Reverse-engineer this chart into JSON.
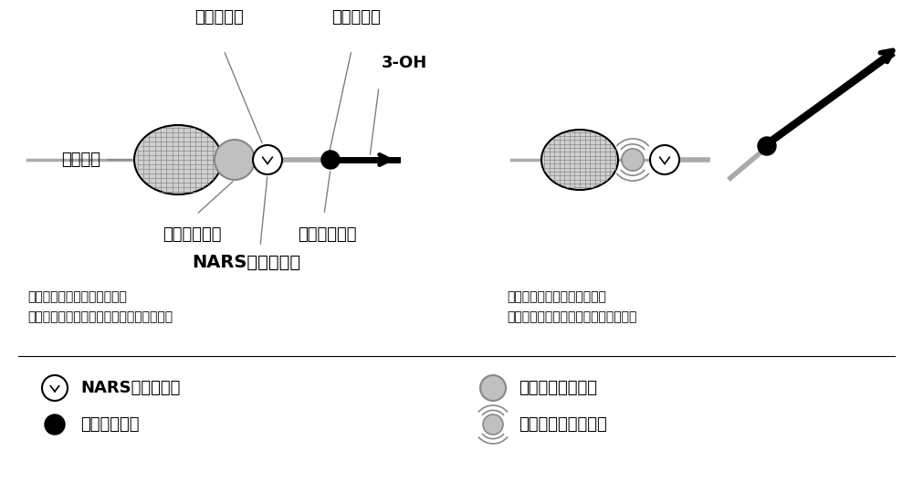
{
  "bg_color": "#ffffff",
  "font_family": "SimHei",
  "fig_width": 10.0,
  "fig_height": 5.4,
  "dpi": 100,
  "labels": {
    "bianma": "编码微球",
    "maoding": "锚定序列区",
    "shibie": "识别序列区",
    "three_oh": "3-OH",
    "reporter": "荧光报告基团",
    "quencher_label": "荧光淬灭基团",
    "nars_label": "NARS正义链序列",
    "desc1_title": "固定在编码微球表面的引物：",
    "desc1_body": "不被缺口剂切割时不释放可检测的荧光信号",
    "desc2_title": "固定在编码微球表面的引物：",
    "desc2_body": "被缺口剂切割时释放可检测的荧光信号",
    "leg_nars": "NARS正义链序列",
    "leg_dot": "荧光淬灭基团",
    "leg_quenched": "被淬灭的荧光基团",
    "leg_released": "释放荧光的荧光基团"
  },
  "colors": {
    "black": "#000000",
    "gray": "#888888",
    "lightgray": "#c8c8c8",
    "white": "#ffffff",
    "darkgray": "#555555"
  }
}
